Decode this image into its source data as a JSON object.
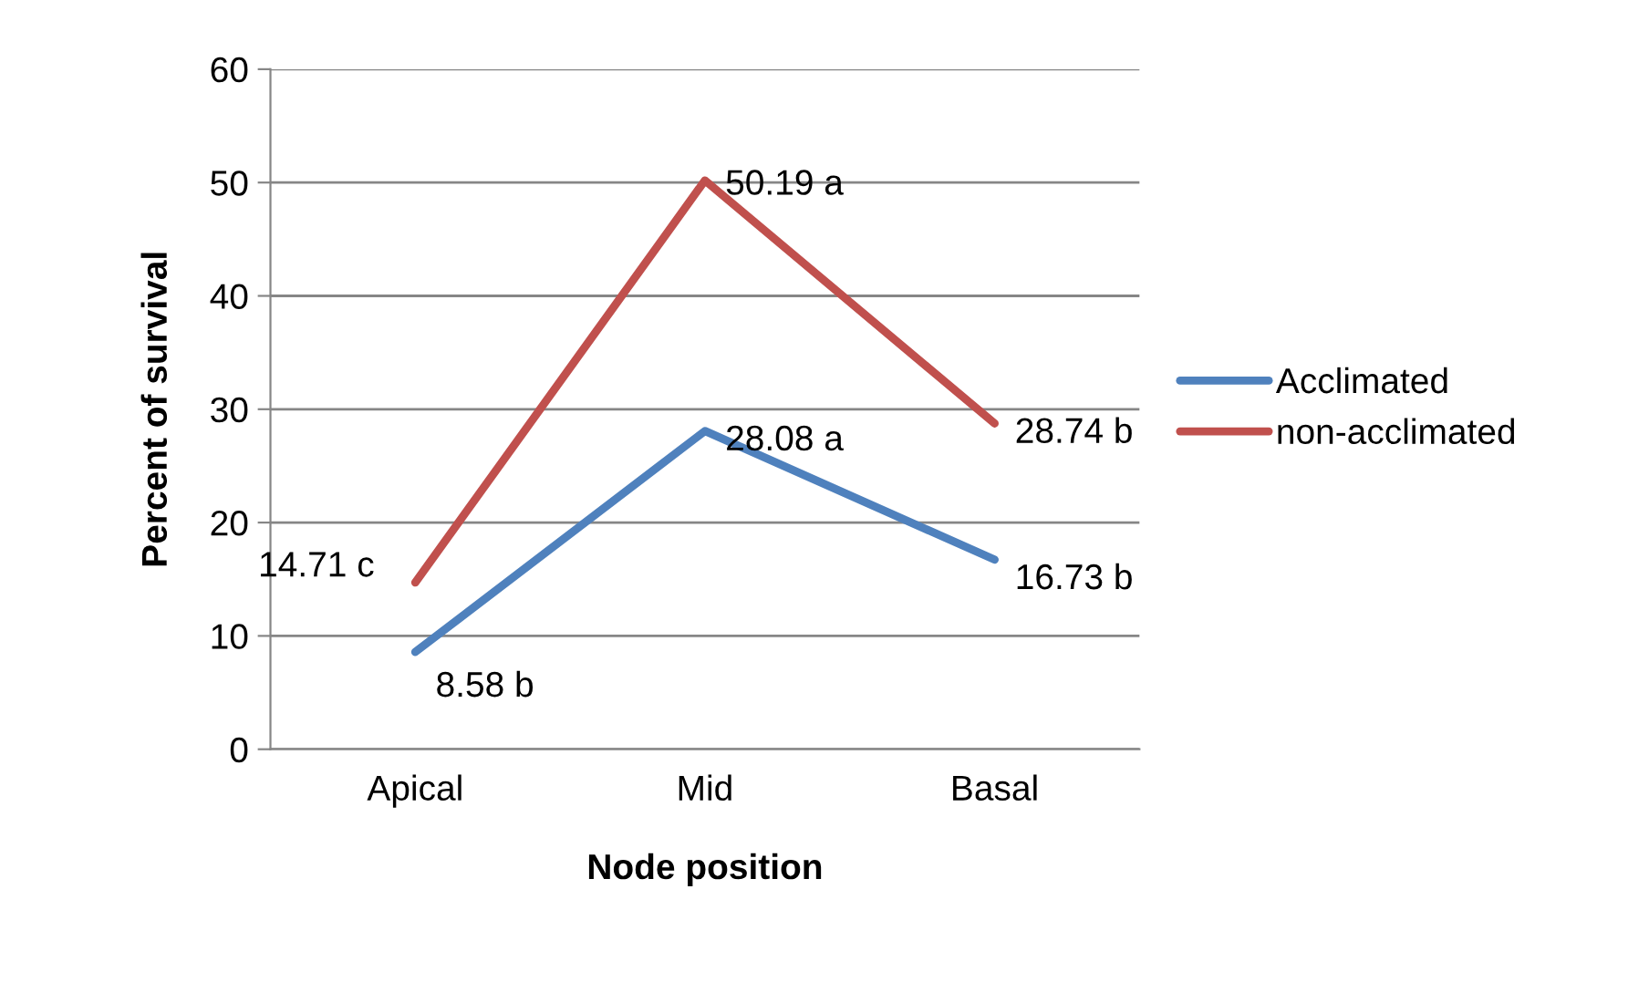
{
  "chart_data": {
    "type": "line",
    "xlabel": "Node position",
    "ylabel": "Percent of survival",
    "categories": [
      "Apical",
      "Mid",
      "Basal"
    ],
    "series": [
      {
        "name": "Acclimated",
        "color": "#4f81bd",
        "values": [
          8.58,
          28.08,
          16.73
        ],
        "value_labels": [
          "8.58 b",
          "28.08 a",
          "16.73 b"
        ]
      },
      {
        "name": "non-acclimated",
        "color": "#c0504d",
        "values": [
          14.71,
          50.19,
          28.74
        ],
        "value_labels": [
          "14.71 c",
          "50.19 a",
          "28.74 b"
        ]
      }
    ],
    "ylim": [
      0,
      60
    ],
    "yticks": [
      0,
      10,
      20,
      30,
      40,
      50,
      60
    ],
    "grid": "y",
    "legend": "right",
    "marker": "none",
    "line_style": "solid"
  }
}
